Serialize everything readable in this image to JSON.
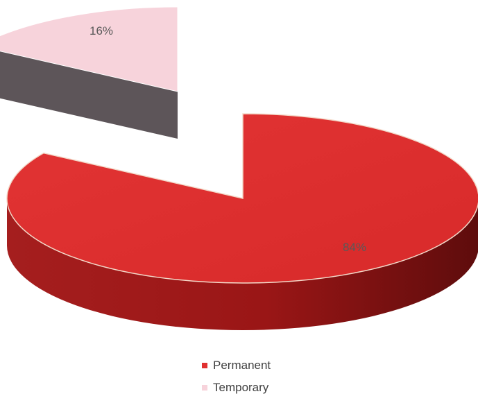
{
  "chart_data": {
    "type": "pie",
    "style": "3d-exploded",
    "categories": [
      "Permanent",
      "Temporary"
    ],
    "values": [
      84,
      16
    ],
    "data_labels": [
      "84%",
      "16%"
    ],
    "colors": {
      "Permanent": "#e03030",
      "Temporary": "#f7d3db"
    },
    "title": "",
    "legend_position": "bottom"
  }
}
